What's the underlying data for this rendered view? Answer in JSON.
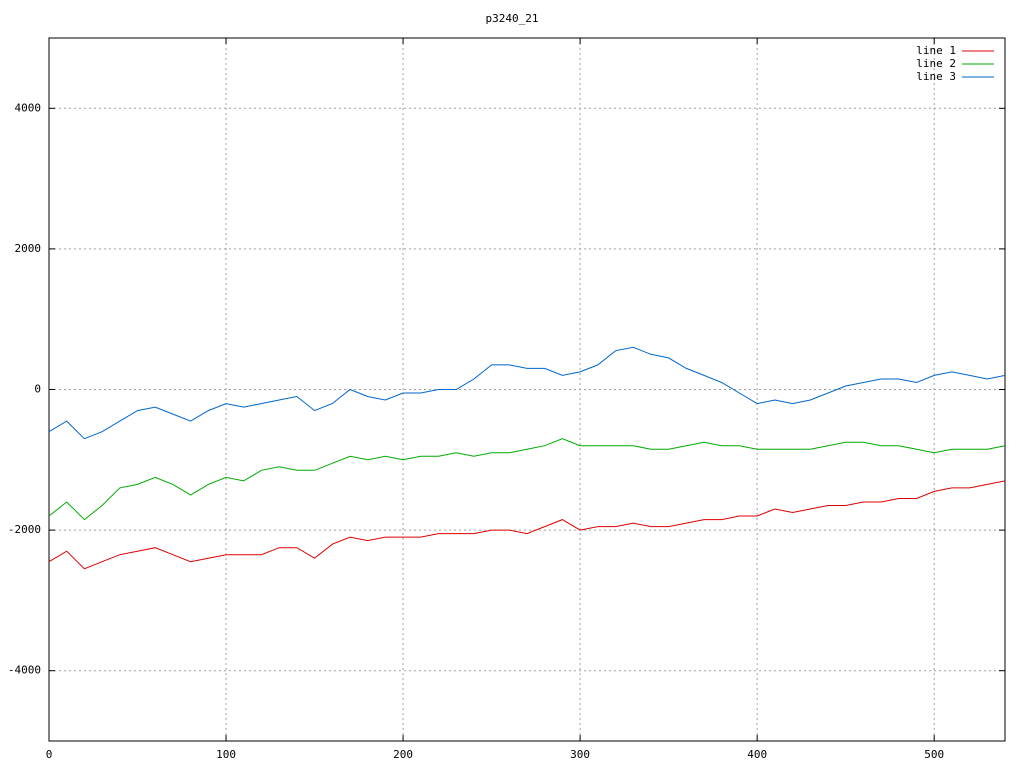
{
  "chart_data": {
    "type": "line",
    "title": "p3240_21",
    "x": [
      0,
      10,
      20,
      30,
      40,
      50,
      60,
      70,
      80,
      90,
      100,
      110,
      120,
      130,
      140,
      150,
      160,
      170,
      180,
      190,
      200,
      210,
      220,
      230,
      240,
      250,
      260,
      270,
      280,
      290,
      300,
      310,
      320,
      330,
      340,
      350,
      360,
      370,
      380,
      390,
      400,
      410,
      420,
      430,
      440,
      450,
      460,
      470,
      480,
      490,
      500,
      510,
      520,
      530,
      540
    ],
    "series": [
      {
        "name": "line 1",
        "color": "#dd0000",
        "values": [
          -2450,
          -2300,
          -2550,
          -2450,
          -2350,
          -2300,
          -2250,
          -2350,
          -2450,
          -2400,
          -2350,
          -2350,
          -2350,
          -2250,
          -2250,
          -2400,
          -2200,
          -2100,
          -2150,
          -2100,
          -2100,
          -2100,
          -2050,
          -2050,
          -2050,
          -2000,
          -2000,
          -2050,
          -1950,
          -1850,
          -2000,
          -1950,
          -1950,
          -1900,
          -1950,
          -1950,
          -1900,
          -1850,
          -1850,
          -1800,
          -1800,
          -1700,
          -1750,
          -1700,
          -1650,
          -1650,
          -1600,
          -1600,
          -1550,
          -1550,
          -1450,
          -1400,
          -1400,
          -1350,
          -1300
        ]
      },
      {
        "name": "line 2",
        "color": "#00aa00",
        "values": [
          -1800,
          -1600,
          -1850,
          -1650,
          -1400,
          -1350,
          -1250,
          -1350,
          -1500,
          -1350,
          -1250,
          -1300,
          -1150,
          -1100,
          -1150,
          -1150,
          -1050,
          -950,
          -1000,
          -950,
          -1000,
          -950,
          -950,
          -900,
          -950,
          -900,
          -900,
          -850,
          -800,
          -700,
          -800,
          -800,
          -800,
          -800,
          -850,
          -850,
          -800,
          -750,
          -800,
          -800,
          -850,
          -850,
          -850,
          -850,
          -800,
          -750,
          -750,
          -800,
          -800,
          -850,
          -900,
          -850,
          -850,
          -850,
          -800
        ]
      },
      {
        "name": "line 3",
        "color": "#0066cc",
        "values": [
          -600,
          -450,
          -700,
          -600,
          -450,
          -300,
          -250,
          -350,
          -450,
          -300,
          -200,
          -250,
          -200,
          -150,
          -100,
          -300,
          -200,
          0,
          -100,
          -150,
          -50,
          -50,
          0,
          0,
          150,
          350,
          350,
          300,
          300,
          200,
          250,
          350,
          550,
          600,
          500,
          450,
          300,
          200,
          100,
          -50,
          -200,
          -150,
          -200,
          -150,
          -50,
          50,
          100,
          150,
          150,
          100,
          200,
          250,
          200,
          150,
          200
        ]
      }
    ],
    "xlim": [
      0,
      540
    ],
    "xticks": [
      0,
      100,
      200,
      300,
      400,
      500
    ],
    "ylim": [
      -5000,
      5000
    ],
    "yticks": [
      -4000,
      -2000,
      0,
      2000,
      4000
    ],
    "grid": true,
    "legend": "top-right"
  }
}
